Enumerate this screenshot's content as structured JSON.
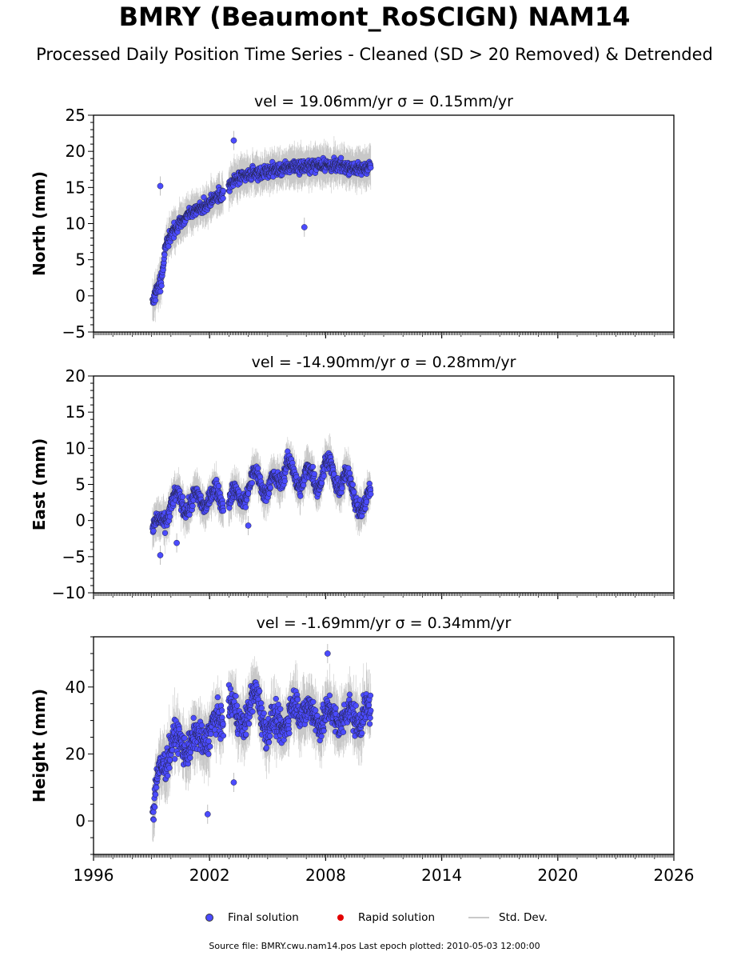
{
  "title": "BMRY (Beaumont_RoSCIGN) NAM14",
  "subtitle": "Processed Daily Position Time Series - Cleaned (SD > 20 Removed) & Detrended",
  "colors": {
    "final": "#4b4bff",
    "final_edge": "#222244",
    "rapid": "#e30000",
    "std_dev": "#b0b0b0"
  },
  "legend": {
    "final": "Final solution",
    "rapid": "Rapid solution",
    "std": "Std. Dev."
  },
  "footer": "Source file: BMRY.cwu.nam14.pos  Last epoch plotted: 2010-05-03 12:00:00",
  "chart_data": [
    {
      "type": "scatter",
      "panel": "north",
      "title": "vel = 19.06mm/yr   σ = 0.15mm/yr",
      "ylabel": "North (mm)",
      "xlim": [
        1996,
        2026
      ],
      "ylim": [
        -5,
        25
      ],
      "yticks": [
        -5,
        0,
        5,
        10,
        15,
        20,
        25
      ],
      "xticks": [
        "1996",
        "2002",
        "2008",
        "2014",
        "2020",
        "2026"
      ],
      "show_xtick_labels": false,
      "data_span": [
        1999.05,
        2010.34
      ],
      "series": [
        {
          "name": "Final solution",
          "x": [
            1999.1,
            1999.3,
            1999.5,
            1999.7,
            2000.0,
            2000.3,
            2000.6,
            2001.0,
            2001.4,
            2001.8,
            2002.2,
            2002.6,
            2003.0,
            2003.3,
            2003.8,
            2004.3,
            2004.8,
            2005.3,
            2005.8,
            2006.3,
            2006.8,
            2007.3,
            2007.8,
            2008.3,
            2008.8,
            2009.3,
            2009.8,
            2010.3
          ],
          "y": [
            -0.5,
            1.0,
            2.0,
            6.5,
            8.5,
            9.5,
            10.5,
            11.5,
            12.0,
            12.5,
            13.5,
            14.0,
            15.0,
            16.0,
            16.5,
            17.0,
            17.0,
            17.5,
            17.5,
            18.0,
            17.8,
            18.0,
            18.2,
            18.0,
            18.0,
            17.8,
            17.5,
            18.0
          ]
        }
      ],
      "outliers": [
        {
          "x": 1999.45,
          "y": 15.2
        },
        {
          "x": 2003.25,
          "y": 21.5
        },
        {
          "x": 2006.9,
          "y": 9.5
        }
      ]
    },
    {
      "type": "scatter",
      "panel": "east",
      "title": "vel = -14.90mm/yr   σ = 0.28mm/yr",
      "ylabel": "East (mm)",
      "xlim": [
        1996,
        2026
      ],
      "ylim": [
        -10,
        20
      ],
      "yticks": [
        -10,
        -5,
        0,
        5,
        10,
        15,
        20
      ],
      "xticks": [
        "1996",
        "2002",
        "2008",
        "2014",
        "2020",
        "2026"
      ],
      "show_xtick_labels": false,
      "data_span": [
        1999.05,
        2010.34
      ],
      "series": [
        {
          "name": "Final solution",
          "x": [
            1999.1,
            1999.3,
            1999.6,
            2000.0,
            2000.5,
            2001.0,
            2001.5,
            2002.0,
            2002.5,
            2003.0,
            2003.5,
            2004.0,
            2004.5,
            2005.0,
            2005.5,
            2006.0,
            2006.5,
            2007.0,
            2007.5,
            2008.0,
            2008.5,
            2009.0,
            2009.5,
            2010.0,
            2010.3
          ],
          "y": [
            -1.5,
            -1.0,
            0.5,
            2.0,
            3.0,
            2.0,
            3.0,
            3.0,
            3.5,
            2.5,
            3.5,
            4.0,
            6.5,
            4.0,
            5.5,
            8.0,
            5.0,
            7.0,
            4.5,
            8.5,
            5.0,
            6.5,
            3.0,
            2.0,
            3.0
          ]
        }
      ],
      "outliers": [
        {
          "x": 1999.45,
          "y": -4.8
        },
        {
          "x": 2000.3,
          "y": -3.1
        },
        {
          "x": 2004.0,
          "y": -0.7
        }
      ]
    },
    {
      "type": "scatter",
      "panel": "height",
      "title": "vel = -1.69mm/yr   σ = 0.34mm/yr",
      "ylabel": "Height (mm)",
      "xlim": [
        1996,
        2026
      ],
      "ylim": [
        -10,
        55
      ],
      "yticks": [
        0,
        20,
        40
      ],
      "xticks": [
        "1996",
        "2002",
        "2008",
        "2014",
        "2020",
        "2026"
      ],
      "show_xtick_labels": true,
      "data_span": [
        1999.05,
        2010.34
      ],
      "series": [
        {
          "name": "Final solution",
          "x": [
            1999.1,
            1999.3,
            1999.6,
            2000.0,
            2000.5,
            2001.0,
            2001.5,
            2002.0,
            2002.5,
            2003.0,
            2003.5,
            2004.0,
            2004.5,
            2005.0,
            2005.5,
            2006.0,
            2006.5,
            2007.0,
            2007.5,
            2008.0,
            2008.5,
            2009.0,
            2009.5,
            2010.0,
            2010.3
          ],
          "y": [
            2,
            12,
            18,
            22,
            24,
            22,
            25,
            26,
            30,
            34,
            30,
            32,
            38,
            26,
            30,
            29,
            35,
            33,
            30,
            32,
            30,
            32,
            30,
            33,
            31
          ]
        }
      ],
      "outliers": [
        {
          "x": 2001.9,
          "y": 2.0
        },
        {
          "x": 2003.25,
          "y": 11.5
        },
        {
          "x": 2008.1,
          "y": 50.0
        }
      ]
    }
  ]
}
